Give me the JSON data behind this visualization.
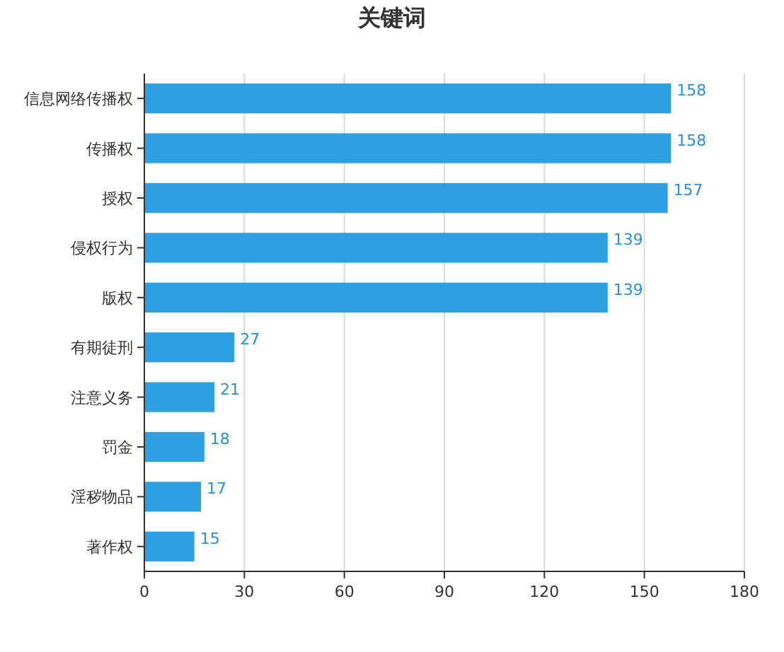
{
  "chart_data": {
    "type": "bar",
    "orientation": "horizontal",
    "title": "关键词",
    "categories": [
      "信息网络传播权",
      "传播权",
      "授权",
      "侵权行为",
      "版权",
      "有期徒刑",
      "注意义务",
      "罚金",
      "淫秽物品",
      "著作权"
    ],
    "values": [
      158,
      158,
      157,
      139,
      139,
      27,
      21,
      18,
      17,
      15
    ],
    "color": "#2e9fe1",
    "xlim": [
      0,
      180
    ],
    "xticks": [
      0,
      30,
      60,
      90,
      120,
      150,
      180
    ],
    "grid": "x",
    "data_labels": true
  }
}
